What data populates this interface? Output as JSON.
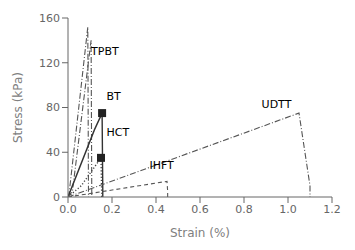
{
  "chart_data": {
    "type": "line",
    "title": "",
    "xlabel": "Strain (%)",
    "ylabel": "Stress (kPa)",
    "xlim": [
      0,
      1.2
    ],
    "ylim": [
      0,
      160
    ],
    "xticks": [
      {
        "value": 0,
        "label": "0.0"
      },
      0.2,
      0.4,
      0.6,
      0.8,
      {
        "value": 1.0,
        "label": "1.0"
      },
      1.2
    ],
    "yticks": [
      0,
      40,
      80,
      120,
      160
    ],
    "grid": false,
    "series": [
      {
        "x": [
          0,
          0.005,
          0.09,
          0.093,
          0.093
        ],
        "values": [
          0,
          3,
          152,
          8,
          0
        ],
        "line_style": "dashdot",
        "color": "#555555"
      },
      {
        "x": [
          0,
          0.02,
          0.105,
          0.108,
          0.108
        ],
        "values": [
          0,
          5,
          140,
          8,
          0
        ],
        "line_style": "dashdot",
        "color": "#555555"
      },
      {
        "x": [
          0,
          0.04,
          0.12,
          0.155,
          0.158,
          0.158
        ],
        "values": [
          0,
          20,
          60,
          75,
          8,
          0
        ],
        "line_style": "solid",
        "color": "#333333"
      },
      {
        "x": [
          0,
          0.06,
          0.15,
          0.153,
          0.153
        ],
        "values": [
          0,
          10,
          35,
          5,
          0
        ],
        "line_style": "dotted",
        "color": "#444444"
      },
      {
        "x": [
          0,
          0.45,
          0.453,
          0.453
        ],
        "values": [
          0,
          14,
          5,
          0
        ],
        "line_style": "dashed",
        "color": "#555555"
      },
      {
        "x": [
          0,
          1.05,
          1.1,
          1.1
        ],
        "values": [
          0,
          75,
          10,
          0
        ],
        "line_style": "dashdot",
        "color": "#555555"
      },
      {
        "type": "scatter",
        "marker": "square",
        "x": [
          0.155,
          0.15
        ],
        "values": [
          75,
          35
        ],
        "color": "#222222"
      }
    ],
    "annotations": [
      {
        "text": "TPBT",
        "x": 0.105,
        "y": 130
      },
      {
        "text": "BT",
        "x": 0.175,
        "y": 90
      },
      {
        "text": "HCT",
        "x": 0.175,
        "y": 58
      },
      {
        "text": "IHFT",
        "x": 0.37,
        "y": 28
      },
      {
        "text": "UDTT",
        "x": 0.88,
        "y": 83
      }
    ]
  }
}
